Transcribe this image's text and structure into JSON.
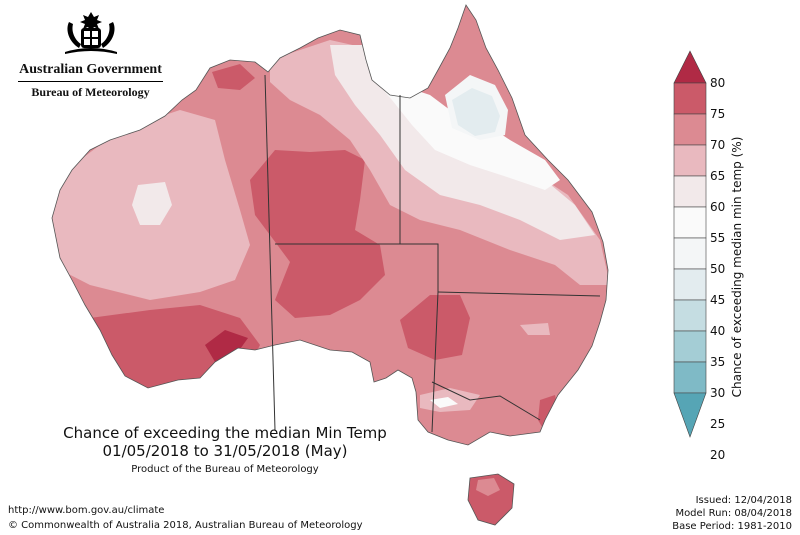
{
  "logo": {
    "emblem": "coat-of-arms",
    "government": "Australian Government",
    "agency": "Bureau of Meteorology"
  },
  "title": {
    "line1": "Chance of exceeding the median Min Temp",
    "line2": "01/05/2018 to 31/05/2018 (May)",
    "line3": "Product of the Bureau of Meteorology"
  },
  "footer": {
    "url": "http://www.bom.gov.au/climate",
    "copyright": "© Commonwealth of Australia 2018, Australian Bureau of Meteorology",
    "issued": "Issued: 12/04/2018",
    "model_run": "Model Run: 08/04/2018",
    "base_period": "Base Period: 1981-2010"
  },
  "legend": {
    "title": "Chance of exceeding median min temp (%)",
    "ticks": [
      "80",
      "75",
      "70",
      "65",
      "60",
      "55",
      "50",
      "45",
      "40",
      "35",
      "30",
      "25",
      "20"
    ],
    "colors": {
      "above75": "#b02a45",
      "70_75": "#cb5a69",
      "65_70": "#dc8a92",
      "60_65": "#e9b9bf",
      "55_60": "#f2e9ea",
      "50_55": "#fafafa",
      "45_50": "#f4f6f7",
      "40_45": "#e3ecef",
      "35_40": "#c5dde2",
      "30_35": "#a4cdd5",
      "25_30": "#7fbac6",
      "below25": "#56a5b5"
    }
  },
  "map": {
    "region": "Australia"
  }
}
